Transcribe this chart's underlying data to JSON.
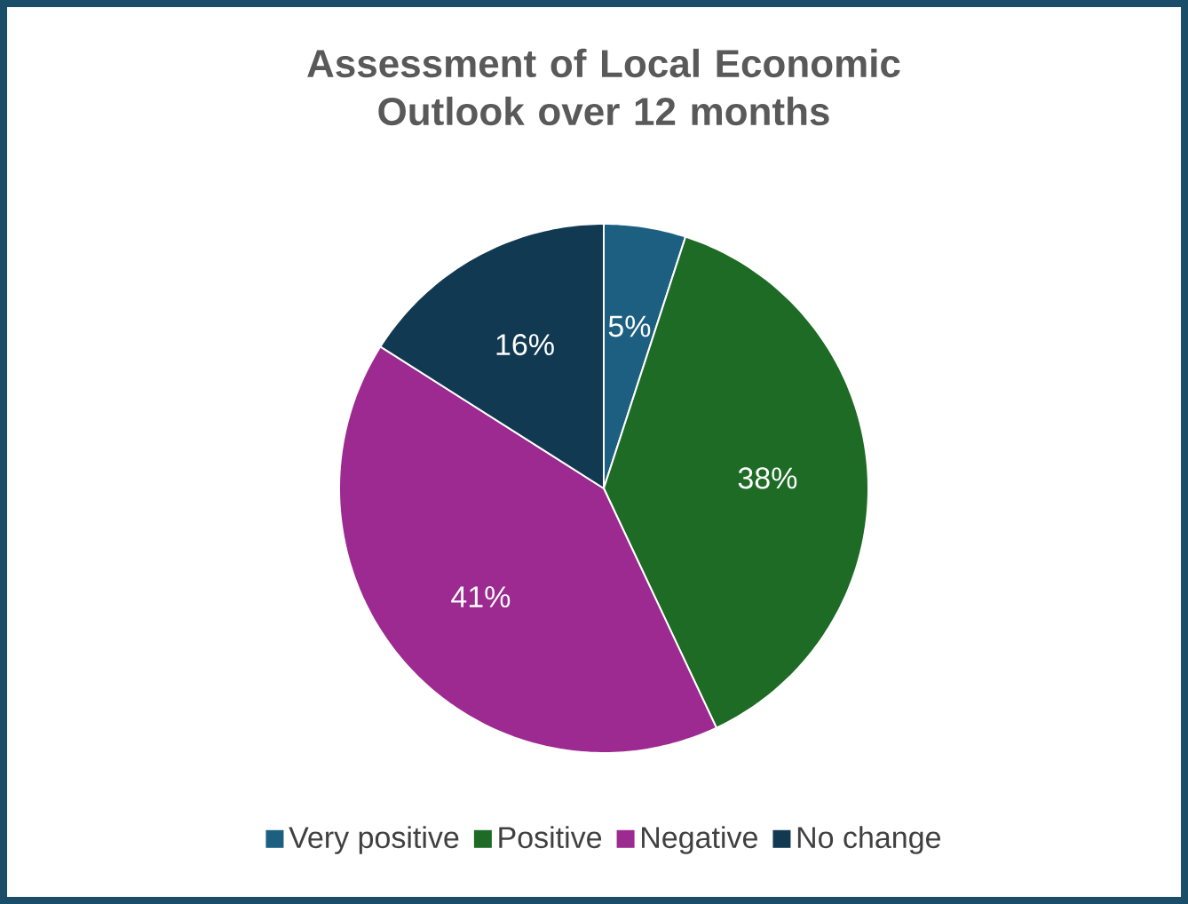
{
  "chart_data": {
    "type": "pie",
    "title": "Assessment of Local Economic Outlook over 12 months",
    "categories": [
      "Very positive",
      "Positive",
      "Negative",
      "No change"
    ],
    "values": [
      5,
      38,
      41,
      16
    ],
    "colors": [
      "#1d5f80",
      "#1e6b25",
      "#9c2a90",
      "#113a52"
    ],
    "value_labels": [
      "5%",
      "38%",
      "41%",
      "16%"
    ],
    "legend": "bottom"
  }
}
